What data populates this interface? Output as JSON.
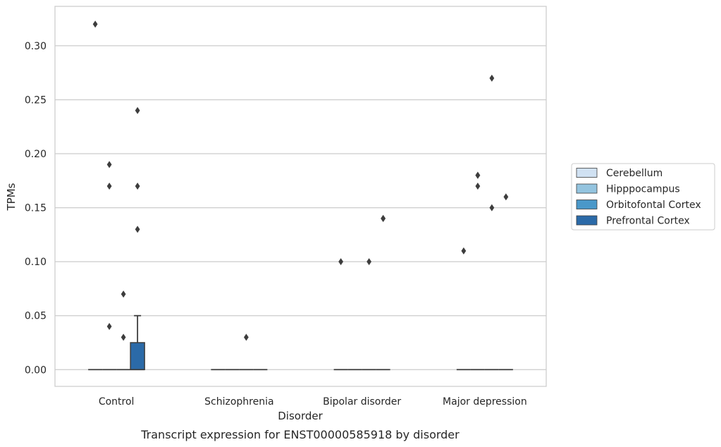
{
  "chart_data": {
    "type": "box",
    "title": "",
    "caption": "Transcript expression for ENST00000585918 by disorder",
    "xlabel": "Disorder",
    "ylabel": "TPMs",
    "ylim": [
      -0.0155,
      0.3365
    ],
    "yticks": [
      "0.00",
      "0.05",
      "0.10",
      "0.15",
      "0.20",
      "0.25",
      "0.30"
    ],
    "ytick_values": [
      0,
      0.05,
      0.1,
      0.15,
      0.2,
      0.25,
      0.3
    ],
    "grid": true,
    "legend_position": "right",
    "categories": [
      "Control",
      "Schizophrenia",
      "Bipolar disorder",
      "Major depression"
    ],
    "series": [
      {
        "name": "Cerebellum",
        "color": "#d0e1f2",
        "boxes": [
          {
            "q1": 0,
            "median": 0,
            "q3": 0,
            "whisker_low": 0,
            "whisker_high": 0,
            "outliers": [
              0.32
            ]
          },
          {
            "q1": 0,
            "median": 0,
            "q3": 0,
            "whisker_low": 0,
            "whisker_high": 0,
            "outliers": []
          },
          {
            "q1": 0,
            "median": 0,
            "q3": 0,
            "whisker_low": 0,
            "whisker_high": 0,
            "outliers": [
              0.1
            ]
          },
          {
            "q1": 0,
            "median": 0,
            "q3": 0,
            "whisker_low": 0,
            "whisker_high": 0,
            "outliers": [
              0.11
            ]
          }
        ]
      },
      {
        "name": "Hipppocampus",
        "color": "#94c4df",
        "boxes": [
          {
            "q1": 0,
            "median": 0,
            "q3": 0,
            "whisker_low": 0,
            "whisker_high": 0,
            "outliers": [
              0.19,
              0.17,
              0.04
            ]
          },
          {
            "q1": 0,
            "median": 0,
            "q3": 0,
            "whisker_low": 0,
            "whisker_high": 0,
            "outliers": []
          },
          {
            "q1": 0,
            "median": 0,
            "q3": 0,
            "whisker_low": 0,
            "whisker_high": 0,
            "outliers": []
          },
          {
            "q1": 0,
            "median": 0,
            "q3": 0,
            "whisker_low": 0,
            "whisker_high": 0,
            "outliers": [
              0.18,
              0.18,
              0.17
            ]
          }
        ]
      },
      {
        "name": "Orbitofontal Cortex",
        "color": "#4a98c9",
        "boxes": [
          {
            "q1": 0,
            "median": 0,
            "q3": 0,
            "whisker_low": 0,
            "whisker_high": 0,
            "outliers": [
              0.07,
              0.03
            ]
          },
          {
            "q1": 0,
            "median": 0,
            "q3": 0,
            "whisker_low": 0,
            "whisker_high": 0,
            "outliers": [
              0.03
            ]
          },
          {
            "q1": 0,
            "median": 0,
            "q3": 0,
            "whisker_low": 0,
            "whisker_high": 0,
            "outliers": [
              0.1
            ]
          },
          {
            "q1": 0,
            "median": 0,
            "q3": 0,
            "whisker_low": 0,
            "whisker_high": 0,
            "outliers": [
              0.27,
              0.15
            ]
          }
        ]
      },
      {
        "name": "Prefrontal Cortex",
        "color": "#2b6aa8",
        "boxes": [
          {
            "q1": 0,
            "median": 0,
            "q3": 0.025,
            "whisker_low": 0,
            "whisker_high": 0.05,
            "outliers": [
              0.24,
              0.17,
              0.13
            ]
          },
          {
            "q1": 0,
            "median": 0,
            "q3": 0,
            "whisker_low": 0,
            "whisker_high": 0,
            "outliers": []
          },
          {
            "q1": 0,
            "median": 0,
            "q3": 0,
            "whisker_low": 0,
            "whisker_high": 0,
            "outliers": [
              0.14,
              0.14
            ]
          },
          {
            "q1": 0,
            "median": 0,
            "q3": 0,
            "whisker_low": 0,
            "whisker_high": 0,
            "outliers": [
              0.16
            ]
          }
        ]
      }
    ]
  }
}
